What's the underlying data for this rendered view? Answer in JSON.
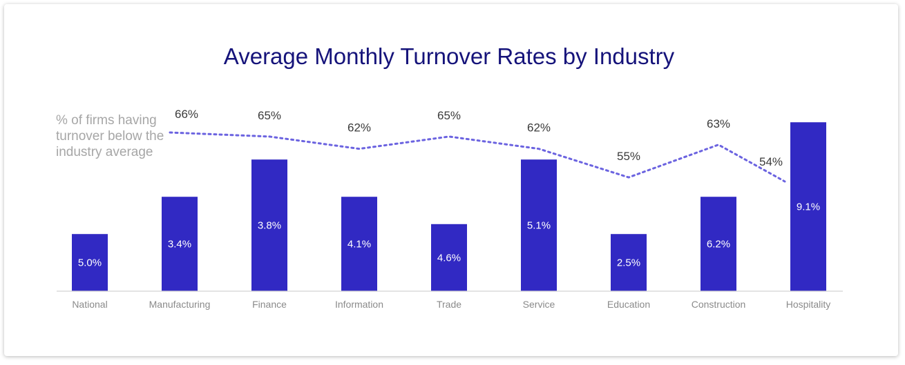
{
  "chart_data": {
    "type": "bar",
    "title": "Average Monthly Turnover Rates by Industry",
    "xlabel": "",
    "ylabel": "",
    "categories": [
      "National",
      "Manufacturing",
      "Finance",
      "Information",
      "Trade",
      "Service",
      "Education",
      "Construction",
      "Hospitality"
    ],
    "bar_value_labels": [
      "5.0%",
      "3.4%",
      "3.8%",
      "4.1%",
      "4.6%",
      "5.1%",
      "2.5%",
      "6.2%",
      "9.1%"
    ],
    "bar_heights_relative": [
      2.3,
      3.8,
      5.3,
      3.8,
      2.7,
      5.3,
      2.3,
      3.8,
      6.8
    ],
    "line_series": {
      "categories": [
        "Manufacturing",
        "Finance",
        "Information",
        "Trade",
        "Service",
        "Education",
        "Construction",
        "Hospitality"
      ],
      "values": [
        66,
        65,
        62,
        65,
        62,
        55,
        63,
        54
      ],
      "labels": [
        "66%",
        "65%",
        "62%",
        "65%",
        "62%",
        "55%",
        "63%",
        "54%"
      ],
      "style": "dotted"
    },
    "annotation": [
      "% of firms having",
      "turnover below the",
      "industry average"
    ],
    "grid": false,
    "legend": "none",
    "colors": {
      "bar": "#3129c3",
      "line": "#6b63e0",
      "title": "#15137a"
    }
  }
}
